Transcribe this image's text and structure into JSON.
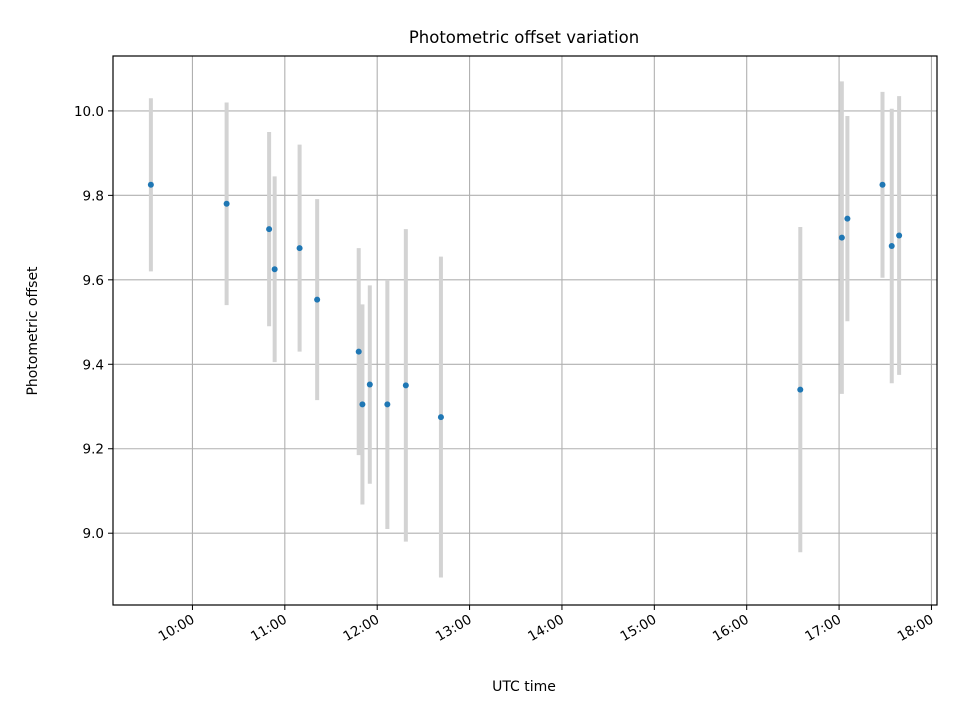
{
  "chart_data": {
    "type": "scatter",
    "title": "Photometric offset variation",
    "xlabel": "UTC time",
    "ylabel": "Photometric offset",
    "x_unit": "hours UTC",
    "xlim": [
      9.14,
      18.06
    ],
    "ylim": [
      8.83,
      10.13
    ],
    "xticks": [
      {
        "value": 10,
        "label": "10:00"
      },
      {
        "value": 11,
        "label": "11:00"
      },
      {
        "value": 12,
        "label": "12:00"
      },
      {
        "value": 13,
        "label": "13:00"
      },
      {
        "value": 14,
        "label": "14:00"
      },
      {
        "value": 15,
        "label": "15:00"
      },
      {
        "value": 16,
        "label": "16:00"
      },
      {
        "value": 17,
        "label": "17:00"
      },
      {
        "value": 18,
        "label": "18:00"
      }
    ],
    "yticks": [
      {
        "value": 9.0,
        "label": "9.0"
      },
      {
        "value": 9.2,
        "label": "9.2"
      },
      {
        "value": 9.4,
        "label": "9.4"
      },
      {
        "value": 9.6,
        "label": "9.6"
      },
      {
        "value": 9.8,
        "label": "9.8"
      },
      {
        "value": 10.0,
        "label": "10.0"
      }
    ],
    "grid": true,
    "point_color": "#1f77b4",
    "errorbar_color": "#d3d3d3",
    "points": [
      {
        "time": "09:33",
        "x": 9.55,
        "y": 9.825,
        "err": 0.205
      },
      {
        "time": "10:22",
        "x": 10.37,
        "y": 9.78,
        "err": 0.24
      },
      {
        "time": "10:50",
        "x": 10.83,
        "y": 9.72,
        "err": 0.23
      },
      {
        "time": "10:53",
        "x": 10.89,
        "y": 9.625,
        "err": 0.22
      },
      {
        "time": "11:10",
        "x": 11.16,
        "y": 9.675,
        "err": 0.245
      },
      {
        "time": "11:21",
        "x": 11.35,
        "y": 9.553,
        "err": 0.238
      },
      {
        "time": "11:48",
        "x": 11.8,
        "y": 9.43,
        "err": 0.245
      },
      {
        "time": "11:50",
        "x": 11.84,
        "y": 9.305,
        "err": 0.237
      },
      {
        "time": "11:55",
        "x": 11.92,
        "y": 9.352,
        "err": 0.235
      },
      {
        "time": "12:06",
        "x": 12.11,
        "y": 9.305,
        "err": 0.295
      },
      {
        "time": "12:18",
        "x": 12.31,
        "y": 9.35,
        "err": 0.37
      },
      {
        "time": "12:41",
        "x": 12.69,
        "y": 9.275,
        "err": 0.38
      },
      {
        "time": "16:35",
        "x": 16.58,
        "y": 9.34,
        "err": 0.385
      },
      {
        "time": "17:02",
        "x": 17.03,
        "y": 9.7,
        "err": 0.37
      },
      {
        "time": "17:05",
        "x": 17.09,
        "y": 9.745,
        "err": 0.243
      },
      {
        "time": "17:28",
        "x": 17.47,
        "y": 9.825,
        "err": 0.22
      },
      {
        "time": "17:34",
        "x": 17.57,
        "y": 9.68,
        "err": 0.325
      },
      {
        "time": "17:39",
        "x": 17.65,
        "y": 9.705,
        "err": 0.33
      }
    ]
  }
}
